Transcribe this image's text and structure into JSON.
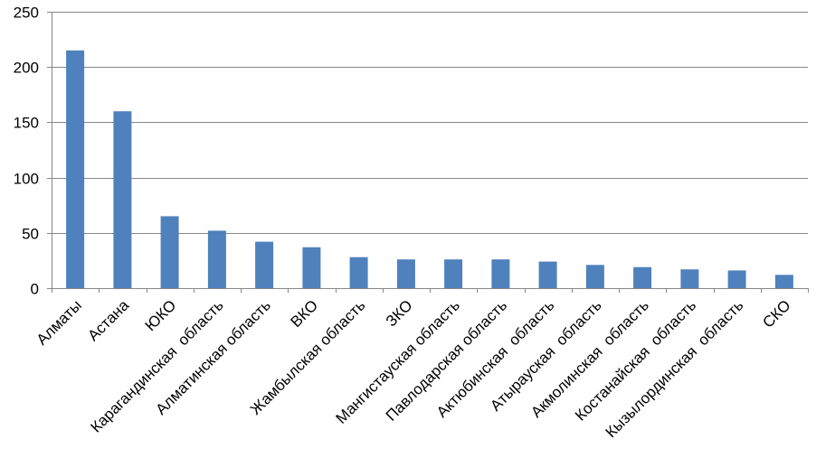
{
  "chart_data": {
    "type": "bar",
    "categories": [
      "Алматы",
      "Астана",
      "ЮКО",
      "Карагандинская  область",
      "Алматинская область",
      "ВКО",
      "Жамбылская область",
      "ЗКО",
      "Мангистауская область",
      "Павлодарская область",
      "Актюбинская  область",
      "Атырауская  область",
      "Акмолинская  область",
      "Костанайская  область",
      "Кызылординская  область",
      "СКО"
    ],
    "series": [
      {
        "values": [
          215,
          160,
          65,
          52,
          42,
          37,
          28,
          26,
          26,
          26,
          24,
          21,
          19,
          17,
          16,
          12
        ]
      }
    ],
    "ylim": [
      0,
      250
    ],
    "yticks": [
      0,
      50,
      100,
      150,
      200,
      250
    ],
    "grid": true,
    "legend": "none",
    "bar_color": "#4F81BD",
    "grid_color": "#878787"
  }
}
